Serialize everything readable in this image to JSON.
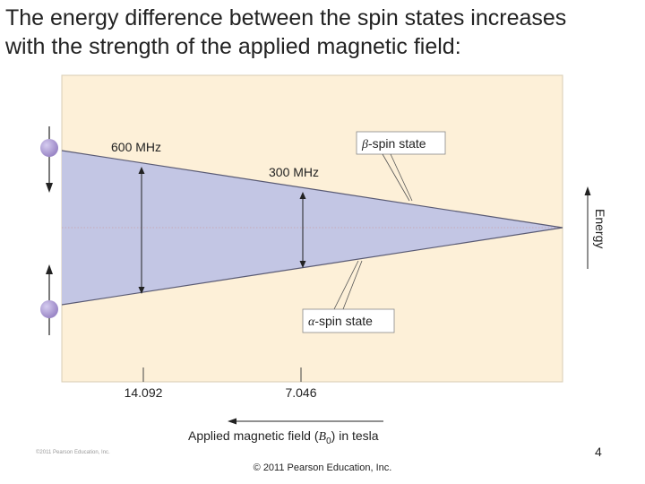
{
  "slide": {
    "title_line1": "The energy difference between the spin states increases",
    "title_line2": "with the strength of the applied magnetic field:",
    "slide_number": "4",
    "copyright_main": "© 2011 Pearson Education, Inc.",
    "copyright_small": "©2011 Pearson Education, Inc."
  },
  "diagram": {
    "colors": {
      "panel_bg": "#fdf0d8",
      "wedge_fill": "#c3c6e4",
      "line": "#5a5b74",
      "ball": "#9a86c6",
      "arrow": "#222222"
    },
    "labels": {
      "freq_600": "600 MHz",
      "freq_300": "300 MHz",
      "beta_symbol": "β",
      "beta_text": "-spin state",
      "alpha_symbol": "α",
      "alpha_text": "-spin state",
      "energy_axis": "Energy",
      "tick_1": "14.092",
      "tick_2": "7.046",
      "field_axis_prefix": "Applied magnetic field (",
      "field_axis_symbol": "B",
      "field_axis_subscript": "0",
      "field_axis_suffix": ") in tesla"
    }
  }
}
